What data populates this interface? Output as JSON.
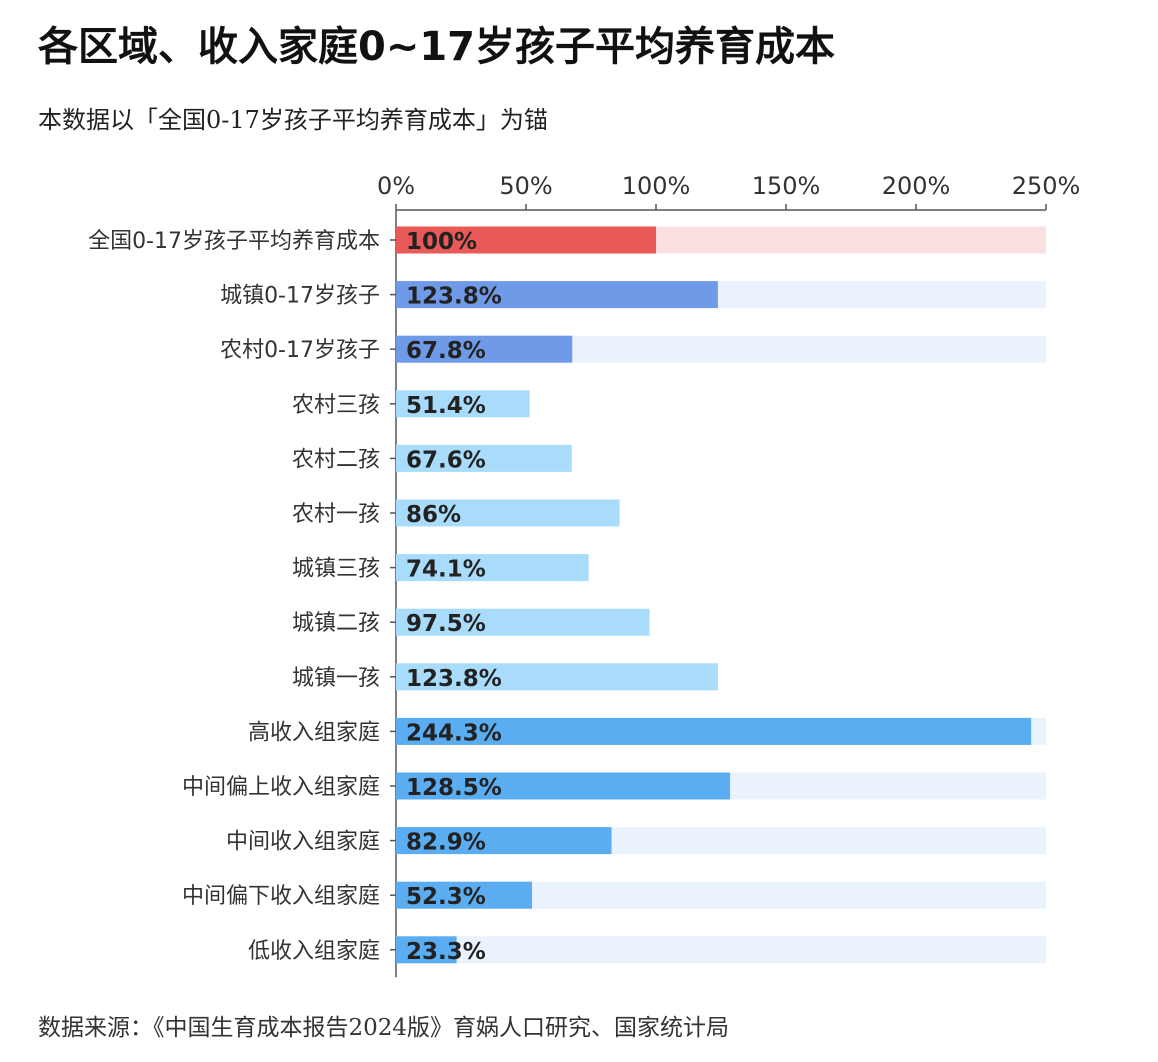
{
  "header": {
    "title": "各区域、收入家庭0~17岁孩子平均养育成本",
    "subtitle": "本数据以「全国0-17岁孩子平均养育成本」为锚"
  },
  "footer": {
    "source": "数据来源：《中国生育成本报告2024版》育娲人口研究、国家统计局"
  },
  "chart_data": {
    "type": "bar",
    "orientation": "horizontal",
    "title": "各区域、收入家庭0~17岁孩子平均养育成本",
    "subtitle": "本数据以「全国0-17岁孩子平均养育成本」为锚",
    "xlim": [
      0,
      250
    ],
    "x_ticks": [
      0,
      50,
      100,
      150,
      200,
      250
    ],
    "x_tick_labels": [
      "0%",
      "50%",
      "100%",
      "150%",
      "200%",
      "250%"
    ],
    "axis_position": "top",
    "grid": false,
    "categories": [
      "全国0-17岁孩子平均养育成本",
      "城镇0-17岁孩子",
      "农村0-17岁孩子",
      "农村三孩",
      "农村二孩",
      "农村一孩",
      "城镇三孩",
      "城镇二孩",
      "城镇一孩",
      "高收入组家庭",
      "中间偏上收入组家庭",
      "中间收入组家庭",
      "中间偏下收入组家庭",
      "低收入组家庭"
    ],
    "values": [
      100,
      123.8,
      67.8,
      51.4,
      67.6,
      86,
      74.1,
      97.5,
      123.8,
      244.3,
      128.5,
      82.9,
      52.3,
      23.3
    ],
    "value_labels": [
      "100%",
      "123.8%",
      "67.8%",
      "51.4%",
      "67.6%",
      "86%",
      "74.1%",
      "97.5%",
      "123.8%",
      "244.3%",
      "128.5%",
      "82.9%",
      "52.3%",
      "23.3%"
    ],
    "background_track": [
      true,
      true,
      true,
      false,
      false,
      false,
      false,
      false,
      false,
      true,
      true,
      true,
      true,
      true
    ],
    "colors": {
      "national": "#e85a57",
      "national_track": "#fbe0e1",
      "urban_rural": "#6f9ae8",
      "by_child_order": "#a9dcfb",
      "by_income": "#5aadf1",
      "track": "#eaf3fd",
      "axis": "#555555"
    },
    "bar_color_keys": [
      "national",
      "urban_rural",
      "urban_rural",
      "by_child_order",
      "by_child_order",
      "by_child_order",
      "by_child_order",
      "by_child_order",
      "by_child_order",
      "by_income",
      "by_income",
      "by_income",
      "by_income",
      "by_income"
    ],
    "track_color_keys": [
      "national_track",
      "track",
      "track",
      "",
      "",
      "",
      "",
      "",
      "",
      "track",
      "track",
      "track",
      "track",
      "track"
    ]
  }
}
